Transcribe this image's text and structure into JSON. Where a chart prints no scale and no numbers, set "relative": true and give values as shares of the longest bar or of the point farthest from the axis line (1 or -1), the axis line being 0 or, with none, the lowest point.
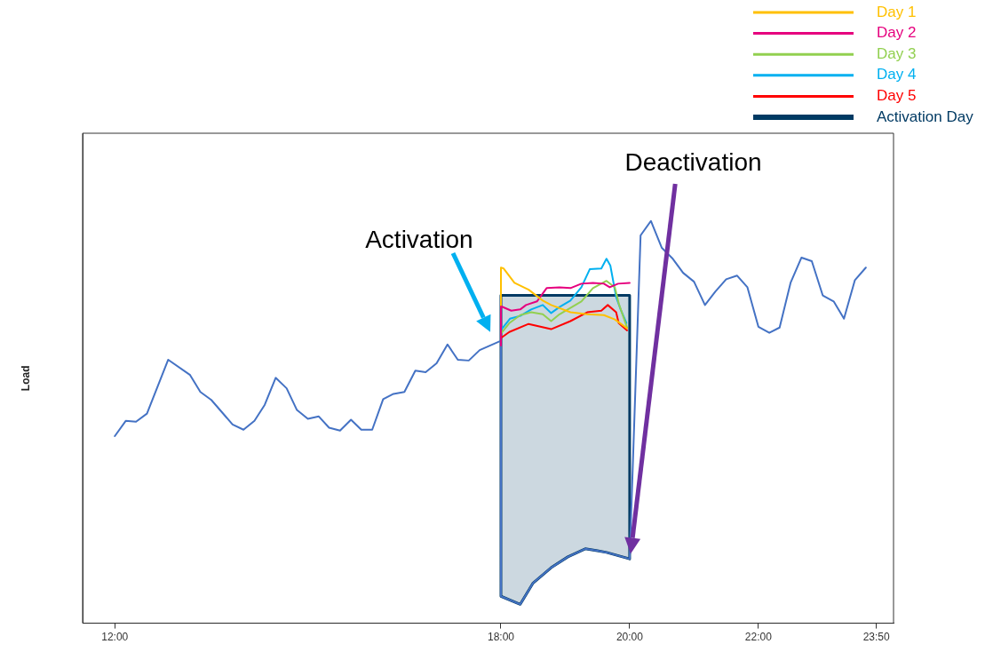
{
  "chart_data": {
    "type": "line",
    "ylabel": "Load",
    "relative": true,
    "marker": "none",
    "legend": "top right",
    "xlim": [
      11.5,
      24.1
    ],
    "xticks": [
      {
        "value": 12,
        "label": "12:00"
      },
      {
        "value": 18,
        "label": "18:00"
      },
      {
        "value": 20,
        "label": "20:00"
      },
      {
        "value": 22,
        "label": "22:00"
      },
      {
        "value": 23.833,
        "label": "23:50"
      }
    ],
    "series": [
      {
        "type": "line",
        "color": "#4472c4",
        "x": [
          12,
          12.17,
          12.33,
          12.5,
          12.83,
          13.17,
          13.33,
          13.5,
          13.83,
          14,
          14.17,
          14.33,
          14.5,
          14.67,
          14.83,
          15,
          15.17,
          15.33,
          15.5,
          15.67,
          15.83,
          16,
          16.17,
          16.33,
          16.5,
          16.67,
          16.83,
          17,
          17.17,
          17.33,
          17.5,
          17.67,
          18,
          18,
          18.3,
          18.5,
          18.78,
          19.04,
          19.31,
          19.5,
          19.64,
          20,
          20.17,
          20.33,
          20.5,
          20.67,
          20.83,
          21,
          21.17,
          21.33,
          21.5,
          21.67,
          21.83,
          22,
          22.17,
          22.33,
          22.5,
          22.67,
          22.83,
          23,
          23.17,
          23.33,
          23.5,
          23.67
        ],
        "values": [
          0.465,
          0.503,
          0.501,
          0.521,
          0.655,
          0.617,
          0.575,
          0.555,
          0.494,
          0.481,
          0.503,
          0.543,
          0.61,
          0.584,
          0.53,
          0.508,
          0.514,
          0.486,
          0.479,
          0.506,
          0.481,
          0.481,
          0.557,
          0.57,
          0.575,
          0.628,
          0.624,
          0.646,
          0.693,
          0.655,
          0.653,
          0.679,
          0.702,
          0.067,
          0.047,
          0.1,
          0.138,
          0.165,
          0.185,
          0.18,
          0.176,
          0.16,
          0.964,
          1,
          0.933,
          0.906,
          0.871,
          0.849,
          0.791,
          0.824,
          0.855,
          0.864,
          0.835,
          0.737,
          0.722,
          0.735,
          0.846,
          0.909,
          0.9,
          0.815,
          0.8,
          0.757,
          0.853,
          0.884
        ]
      },
      {
        "type": "line",
        "name": "Day 1",
        "color": "#ffc000",
        "x": [
          18,
          18,
          18.04,
          18.21,
          18.43,
          18.65,
          18.78,
          19.08,
          19.34,
          19.6,
          19.77,
          19.96
        ],
        "values": [
          0.791,
          0.884,
          0.882,
          0.846,
          0.829,
          0.802,
          0.791,
          0.773,
          0.768,
          0.766,
          0.755,
          0.733
        ]
      },
      {
        "type": "line",
        "name": "Day 2",
        "color": "#e6007e",
        "x": [
          18,
          18,
          18.16,
          18.3,
          18.39,
          18.56,
          18.71,
          18.91,
          19.08,
          19.25,
          19.43,
          19.6,
          19.69,
          19.82,
          20
        ],
        "values": [
          0.69,
          0.788,
          0.777,
          0.78,
          0.791,
          0.8,
          0.833,
          0.835,
          0.833,
          0.844,
          0.846,
          0.844,
          0.835,
          0.844,
          0.846
        ]
      },
      {
        "type": "line",
        "name": "Day 3",
        "color": "#92d050",
        "x": [
          18.01,
          18.13,
          18.3,
          18.47,
          18.65,
          18.78,
          18.91,
          19.08,
          19.25,
          19.43,
          19.64,
          19.77,
          19.83,
          19.96
        ],
        "values": [
          0.722,
          0.746,
          0.766,
          0.773,
          0.768,
          0.751,
          0.768,
          0.784,
          0.8,
          0.833,
          0.851,
          0.835,
          0.795,
          0.735
        ]
      },
      {
        "type": "line",
        "name": "Day 4",
        "color": "#00b0f0",
        "x": [
          18.01,
          18.14,
          18.3,
          18.47,
          18.65,
          18.78,
          18.91,
          19.08,
          19.25,
          19.38,
          19.56,
          19.64,
          19.7,
          19.79,
          19.86,
          19.95
        ],
        "values": [
          0.731,
          0.757,
          0.764,
          0.78,
          0.791,
          0.771,
          0.786,
          0.802,
          0.835,
          0.88,
          0.882,
          0.906,
          0.889,
          0.811,
          0.78,
          0.746
        ]
      },
      {
        "type": "line",
        "name": "Day 5",
        "color": "#ff0000",
        "x": [
          18.01,
          18.13,
          18.43,
          18.78,
          19.08,
          19.34,
          19.56,
          19.66,
          19.79,
          19.83,
          19.96
        ],
        "values": [
          0.71,
          0.724,
          0.744,
          0.731,
          0.751,
          0.773,
          0.777,
          0.791,
          0.773,
          0.746,
          0.728
        ]
      },
      {
        "type": "area",
        "name": "Activation Day",
        "color": "#003a63",
        "x": [
          18,
          20,
          20,
          19.64,
          19.5,
          19.31,
          19.04,
          18.78,
          18.5,
          18.3,
          18,
          18
        ],
        "values": [
          0.815,
          0.815,
          0.16,
          0.176,
          0.18,
          0.185,
          0.165,
          0.138,
          0.1,
          0.047,
          0.067,
          0.815
        ]
      }
    ],
    "annotations": [
      "Activation",
      "Deactivation"
    ]
  }
}
